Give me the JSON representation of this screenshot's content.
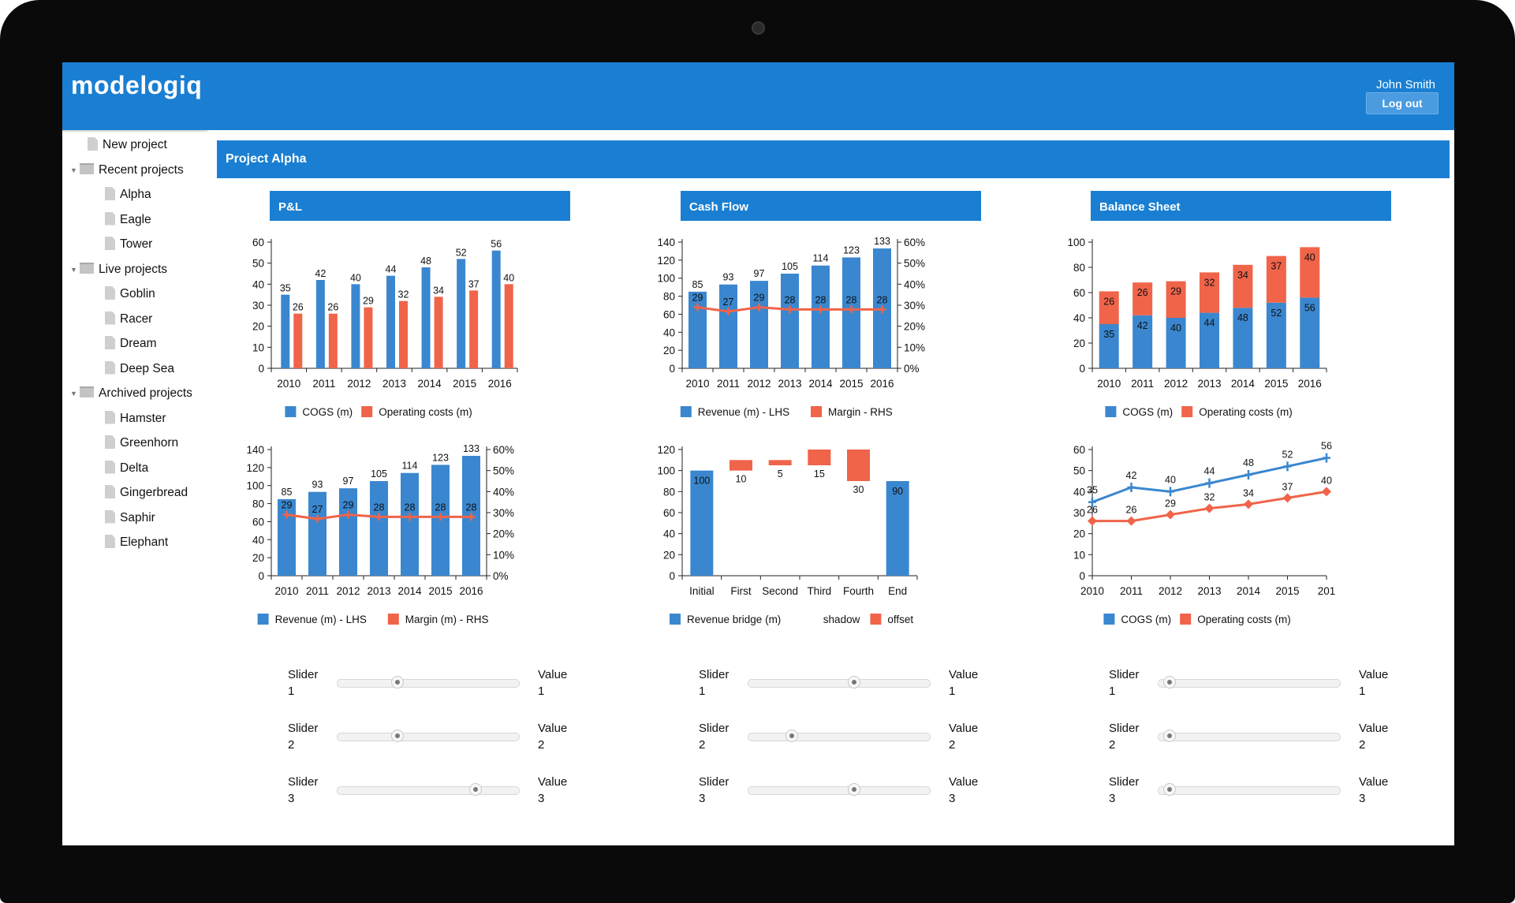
{
  "app": {
    "logo": "modelogiq",
    "user": "John Smith",
    "logout_label": "Log out"
  },
  "sidebar": {
    "new_project": "New project",
    "recent": {
      "label": "Recent projects",
      "items": [
        "Alpha",
        "Eagle",
        "Tower"
      ]
    },
    "live": {
      "label": "Live projects",
      "items": [
        "Goblin",
        "Racer",
        "Dream",
        "Deep Sea"
      ]
    },
    "archived": {
      "label": "Archived projects",
      "items": [
        "Hamster",
        "Greenhorn",
        "Delta",
        "Gingerbread",
        "Saphir",
        "Elephant"
      ]
    }
  },
  "project": {
    "title": "Project Alpha"
  },
  "panels": [
    {
      "title": "P&L",
      "sliders": [
        {
          "label": [
            "Slider",
            "1"
          ],
          "value_label": [
            "Value",
            "1"
          ],
          "position": 0.32
        },
        {
          "label": [
            "Slider",
            "2"
          ],
          "value_label": [
            "Value",
            "2"
          ],
          "position": 0.32
        },
        {
          "label": [
            "Slider",
            "3"
          ],
          "value_label": [
            "Value",
            "3"
          ],
          "position": 0.78
        }
      ]
    },
    {
      "title": "Cash Flow",
      "sliders": [
        {
          "label": [
            "Slider",
            "1"
          ],
          "value_label": [
            "Value",
            "1"
          ],
          "position": 0.59
        },
        {
          "label": [
            "Slider",
            "2"
          ],
          "value_label": [
            "Value",
            "2"
          ],
          "position": 0.22
        },
        {
          "label": [
            "Slider",
            "3"
          ],
          "value_label": [
            "Value",
            "3"
          ],
          "position": 0.59
        }
      ]
    },
    {
      "title": "Balance Sheet",
      "sliders": [
        {
          "label": [
            "Slider",
            "1"
          ],
          "value_label": [
            "Value",
            "1"
          ],
          "position": 0.03
        },
        {
          "label": [
            "Slider",
            "2"
          ],
          "value_label": [
            "Value",
            "2"
          ],
          "position": 0.03
        },
        {
          "label": [
            "Slider",
            "3"
          ],
          "value_label": [
            "Value",
            "3"
          ],
          "position": 0.03
        }
      ]
    }
  ],
  "colors": {
    "blue": "#3a87cf",
    "red": "#f0644a",
    "header": "#1a7fd2"
  },
  "chart_data": [
    {
      "type": "bar",
      "categories": [
        "2010",
        "2011",
        "2012",
        "2013",
        "2014",
        "2015",
        "2016"
      ],
      "ylim": [
        0,
        60
      ],
      "yticks": [
        0,
        10,
        20,
        30,
        40,
        50,
        60
      ],
      "series": [
        {
          "name": "COGS (m)",
          "values": [
            35,
            42,
            40,
            44,
            48,
            52,
            56
          ]
        },
        {
          "name": "Operating costs (m)",
          "values": [
            26,
            26,
            29,
            32,
            34,
            37,
            40
          ]
        }
      ]
    },
    {
      "type": "bar",
      "categories": [
        "2010",
        "2011",
        "2012",
        "2013",
        "2014",
        "2015",
        "2016"
      ],
      "ylim": [
        0,
        140
      ],
      "yticks": [
        0,
        20,
        40,
        60,
        80,
        100,
        120,
        140
      ],
      "y2lim": [
        0,
        60
      ],
      "y2ticks": [
        "0%",
        "10%",
        "20%",
        "30%",
        "40%",
        "50%",
        "60%"
      ],
      "series": [
        {
          "name": "Revenue (m) - LHS",
          "values": [
            85,
            93,
            97,
            105,
            114,
            123,
            133
          ]
        },
        {
          "name": "Margin - RHS",
          "type": "line",
          "axis": "right",
          "values": [
            29,
            27,
            29,
            28,
            28,
            28,
            28
          ]
        }
      ]
    },
    {
      "type": "bar",
      "stacked": true,
      "categories": [
        "2010",
        "2011",
        "2012",
        "2013",
        "2014",
        "2015",
        "2016"
      ],
      "ylim": [
        0,
        100
      ],
      "yticks": [
        0,
        20,
        40,
        60,
        80,
        100
      ],
      "series": [
        {
          "name": "COGS (m)",
          "values": [
            35,
            42,
            40,
            44,
            48,
            52,
            56
          ]
        },
        {
          "name": "Operating costs (m)",
          "values": [
            26,
            26,
            29,
            32,
            34,
            37,
            40
          ]
        }
      ]
    },
    {
      "type": "bar",
      "categories": [
        "2010",
        "2011",
        "2012",
        "2013",
        "2014",
        "2015",
        "2016"
      ],
      "ylim": [
        0,
        140
      ],
      "yticks": [
        0,
        20,
        40,
        60,
        80,
        100,
        120,
        140
      ],
      "y2lim": [
        0,
        60
      ],
      "y2ticks": [
        "0%",
        "10%",
        "20%",
        "30%",
        "40%",
        "50%",
        "60%"
      ],
      "series": [
        {
          "name": "Revenue (m) - LHS",
          "values": [
            85,
            93,
            97,
            105,
            114,
            123,
            133
          ]
        },
        {
          "name": "Margin (m) - RHS",
          "type": "line",
          "axis": "right",
          "values": [
            29,
            27,
            29,
            28,
            28,
            28,
            28
          ]
        }
      ]
    },
    {
      "type": "bar",
      "waterfall": true,
      "categories": [
        "Initial",
        "First",
        "Second",
        "Third",
        "Fourth",
        "End"
      ],
      "ylim": [
        0,
        120
      ],
      "yticks": [
        0,
        20,
        40,
        60,
        80,
        100,
        120
      ],
      "series": [
        {
          "name": "Revenue bridge (m)",
          "values": [
            100,
            0,
            0,
            0,
            0,
            90
          ]
        },
        {
          "name": "shadow",
          "values": [
            0,
            100,
            105,
            105,
            90,
            0
          ]
        },
        {
          "name": "offset",
          "values": [
            0,
            10,
            5,
            15,
            30,
            0
          ]
        }
      ],
      "labels": [
        "100",
        "10",
        "5",
        "15",
        "30",
        "90"
      ]
    },
    {
      "type": "line",
      "categories": [
        "2010",
        "2011",
        "2012",
        "2013",
        "2014",
        "2015",
        "201"
      ],
      "ylim": [
        0,
        60
      ],
      "yticks": [
        0,
        10,
        20,
        30,
        40,
        50,
        60
      ],
      "series": [
        {
          "name": "COGS (m)",
          "values": [
            35,
            42,
            40,
            44,
            48,
            52,
            56
          ]
        },
        {
          "name": "Operating costs (m)",
          "values": [
            26,
            26,
            29,
            32,
            34,
            37,
            40
          ]
        }
      ]
    }
  ]
}
